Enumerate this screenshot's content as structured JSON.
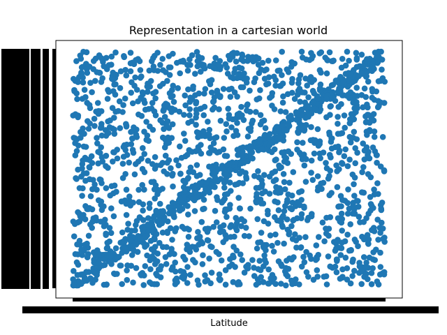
{
  "chart_data": {
    "type": "scatter",
    "title": "Representation in a cartesian world",
    "xlabel": "Latitude",
    "ylabel": "",
    "grid": false,
    "legend": "none",
    "marker_color": "#1f77b4",
    "n_points": 2000,
    "x_tick_labels_overlapping": true,
    "y_tick_labels_overlapping": true,
    "tick_count_estimate": 2000
  }
}
